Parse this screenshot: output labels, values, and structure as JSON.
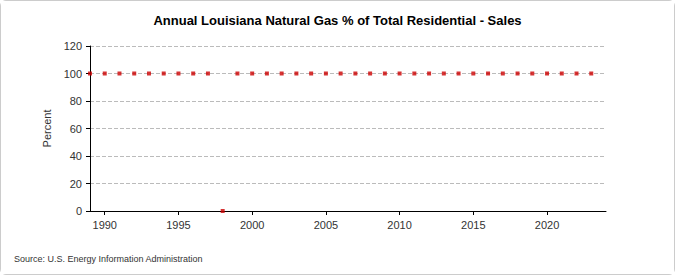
{
  "chart_data": {
    "type": "scatter",
    "title": "Annual Louisiana Natural Gas % of Total Residential - Sales",
    "y_label": "Percent",
    "source": "Source: U.S. Energy Information Administration",
    "x": [
      1989,
      1990,
      1991,
      1992,
      1993,
      1994,
      1995,
      1996,
      1997,
      1998,
      1999,
      2000,
      2001,
      2002,
      2003,
      2004,
      2005,
      2006,
      2007,
      2008,
      2009,
      2010,
      2011,
      2012,
      2013,
      2014,
      2015,
      2016,
      2017,
      2018,
      2019,
      2020,
      2021,
      2022,
      2023
    ],
    "values": [
      100,
      100,
      100,
      100,
      100,
      100,
      100,
      100,
      100,
      0,
      100,
      100,
      100,
      100,
      100,
      100,
      100,
      100,
      100,
      100,
      100,
      100,
      100,
      100,
      100,
      100,
      100,
      100,
      100,
      100,
      100,
      100,
      100,
      100,
      100
    ],
    "color": "#cc0000",
    "marker": "square",
    "xlim": [
      1989,
      2024
    ],
    "xticks": [
      1990,
      1995,
      2000,
      2005,
      2010,
      2015,
      2020
    ],
    "ylim": [
      0,
      120
    ],
    "yticks": [
      0,
      20,
      40,
      60,
      80,
      100,
      120
    ],
    "grid": true
  }
}
